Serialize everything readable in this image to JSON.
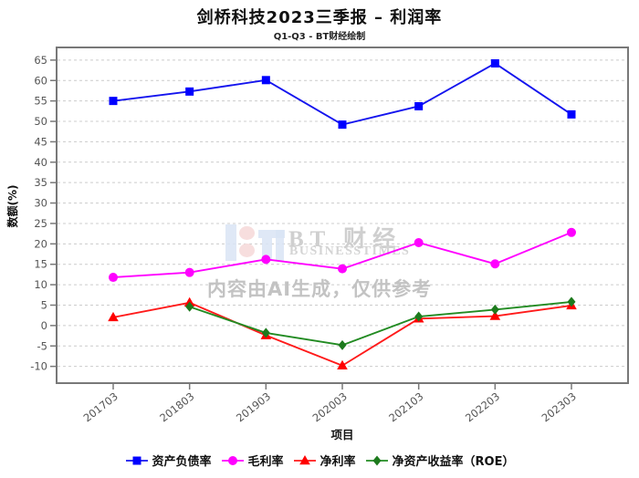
{
  "chart_data": {
    "type": "line",
    "title": "剑桥科技2023三季报 – 利润率",
    "subtitle": "Q1-Q3 - BT财经绘制",
    "xlabel": "项目",
    "ylabel": "数额(%)",
    "categories": [
      "201703",
      "201803",
      "201903",
      "202003",
      "202103",
      "202203",
      "202303"
    ],
    "series": [
      {
        "name": "资产负债率",
        "marker": "square",
        "color": "#1414ee",
        "marker_color": "#0000ff",
        "values": [
          55.0,
          57.3,
          60.1,
          49.2,
          53.7,
          64.2,
          51.7
        ]
      },
      {
        "name": "毛利率",
        "marker": "circle",
        "color": "#ff00ff",
        "marker_color": "#ff00ff",
        "values": [
          11.8,
          13.0,
          16.2,
          13.9,
          20.3,
          15.1,
          22.8
        ]
      },
      {
        "name": "净利率",
        "marker": "triangle",
        "color": "#ff1a1a",
        "marker_color": "#ff0000",
        "values": [
          2.0,
          5.6,
          -2.4,
          -9.8,
          1.7,
          2.3,
          4.9
        ]
      },
      {
        "name": "净资产收益率（ROE）",
        "marker": "diamond",
        "color": "#228b22",
        "marker_color": "#1d7a1d",
        "values": [
          null,
          4.6,
          -1.8,
          -4.8,
          2.2,
          3.9,
          5.8
        ]
      }
    ],
    "yticks": [
      65,
      60,
      55,
      50,
      45,
      40,
      35,
      30,
      25,
      20,
      15,
      10,
      5,
      0,
      -5,
      -10
    ],
    "ylim": [
      -14.1,
      68.1
    ],
    "grid": true,
    "legend_position": "bottom",
    "grid_color": "#cccccc",
    "frame_color": "#787878",
    "tick_label_color": "#555555"
  },
  "watermark": {
    "brand": "BT 财经",
    "brand_sub": "BUSINESSTIMES",
    "disclaimer": "内容由AI生成，仅供参考"
  }
}
